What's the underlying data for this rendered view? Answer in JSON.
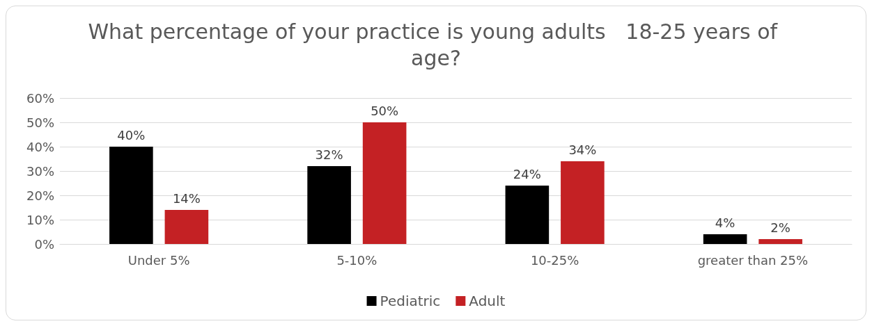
{
  "chart_data": {
    "type": "bar",
    "title": "What percentage of your practice is young adults   18-25 years of age?",
    "categories": [
      "Under 5%",
      "5-10%",
      "10-25%",
      "greater than 25%"
    ],
    "series": [
      {
        "name": "Pediatric",
        "color": "#000000",
        "values": [
          40,
          32,
          24,
          4
        ],
        "value_labels": [
          "40%",
          "32%",
          "24%",
          "4%"
        ]
      },
      {
        "name": "Adult",
        "color": "#c42124",
        "values": [
          14,
          50,
          34,
          2
        ],
        "value_labels": [
          "14%",
          "50%",
          "34%",
          "2%"
        ]
      }
    ],
    "ylim": [
      0,
      60
    ],
    "yticks": [
      {
        "value": 0,
        "label": "0%"
      },
      {
        "value": 10,
        "label": "10%"
      },
      {
        "value": 20,
        "label": "20%"
      },
      {
        "value": 30,
        "label": "30%"
      },
      {
        "value": 40,
        "label": "40%"
      },
      {
        "value": 50,
        "label": "50%"
      },
      {
        "value": 60,
        "label": "60%"
      }
    ],
    "grid": "y",
    "legend": "bottom"
  }
}
